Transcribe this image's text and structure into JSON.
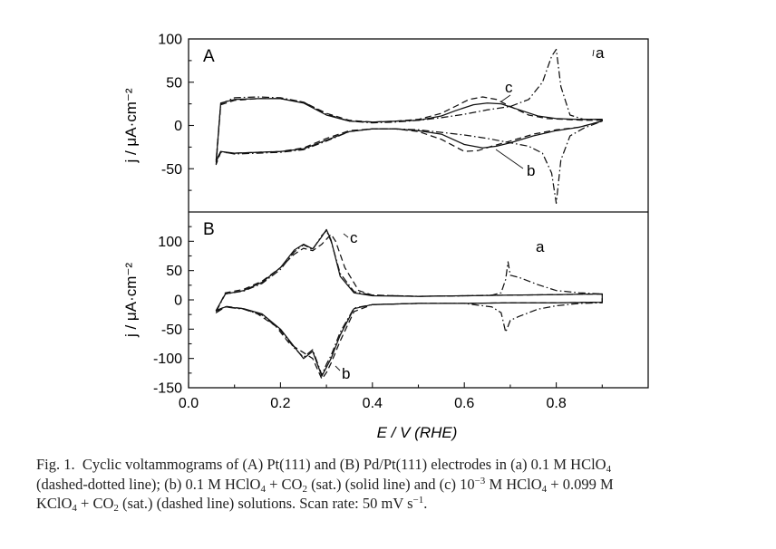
{
  "chart_data": [
    {
      "type": "line",
      "panel": "A",
      "xlabel": "E / V (RHE)",
      "ylabel": "j / μA·cm⁻²",
      "xlim": [
        0.0,
        1.0
      ],
      "ylim": [
        -100,
        100
      ],
      "yticks": [
        "100",
        "50",
        "0",
        "-50"
      ],
      "curve_labels": [
        "a",
        "c",
        "b"
      ],
      "series": [
        {
          "label": "a",
          "style": "dash-dot",
          "anodic": {
            "x": [
              0.06,
              0.07,
              0.1,
              0.15,
              0.2,
              0.25,
              0.3,
              0.35,
              0.4,
              0.45,
              0.5,
              0.55,
              0.6,
              0.65,
              0.7,
              0.74,
              0.77,
              0.79,
              0.8,
              0.81,
              0.83,
              0.86,
              0.9
            ],
            "y": [
              -40,
              25,
              32,
              33,
              32,
              27,
              13,
              5,
              3,
              4,
              6,
              9,
              13,
              18,
              22,
              30,
              50,
              80,
              88,
              45,
              12,
              7,
              7
            ]
          },
          "cathodic": {
            "x": [
              0.9,
              0.86,
              0.83,
              0.81,
              0.8,
              0.79,
              0.77,
              0.74,
              0.7,
              0.65,
              0.6,
              0.55,
              0.5,
              0.45,
              0.4,
              0.35,
              0.3,
              0.25,
              0.2,
              0.15,
              0.1,
              0.07,
              0.06
            ],
            "y": [
              5,
              -3,
              -12,
              -40,
              -90,
              -55,
              -32,
              -24,
              -20,
              -15,
              -11,
              -8,
              -5,
              -4,
              -4,
              -7,
              -18,
              -28,
              -31,
              -32,
              -33,
              -30,
              -40
            ]
          }
        },
        {
          "label": "b",
          "style": "solid",
          "anodic": {
            "x": [
              0.06,
              0.07,
              0.1,
              0.15,
              0.2,
              0.25,
              0.3,
              0.35,
              0.4,
              0.45,
              0.5,
              0.55,
              0.58,
              0.62,
              0.65,
              0.68,
              0.72,
              0.76,
              0.8,
              0.85,
              0.9
            ],
            "y": [
              -42,
              26,
              30,
              31,
              31,
              26,
              12,
              5,
              4,
              5,
              6,
              11,
              17,
              24,
              26,
              25,
              18,
              11,
              8,
              7,
              7
            ]
          },
          "cathodic": {
            "x": [
              0.9,
              0.85,
              0.8,
              0.75,
              0.7,
              0.67,
              0.64,
              0.6,
              0.55,
              0.5,
              0.45,
              0.4,
              0.35,
              0.3,
              0.25,
              0.2,
              0.15,
              0.1,
              0.07,
              0.06
            ],
            "y": [
              5,
              -2,
              -6,
              -12,
              -20,
              -24,
              -26,
              -22,
              -10,
              -6,
              -4,
              -4,
              -7,
              -17,
              -27,
              -30,
              -31,
              -32,
              -30,
              -42
            ]
          }
        },
        {
          "label": "c",
          "style": "dashed",
          "anodic": {
            "x": [
              0.06,
              0.07,
              0.1,
              0.15,
              0.2,
              0.25,
              0.3,
              0.35,
              0.4,
              0.45,
              0.5,
              0.55,
              0.58,
              0.61,
              0.64,
              0.67,
              0.7,
              0.74,
              0.78,
              0.82,
              0.86,
              0.9
            ],
            "y": [
              -45,
              24,
              29,
              31,
              31,
              27,
              14,
              6,
              4,
              5,
              7,
              14,
              22,
              30,
              33,
              30,
              22,
              12,
              8,
              7,
              6,
              6
            ]
          },
          "cathodic": {
            "x": [
              0.9,
              0.85,
              0.8,
              0.75,
              0.7,
              0.66,
              0.63,
              0.6,
              0.55,
              0.5,
              0.45,
              0.4,
              0.35,
              0.3,
              0.25,
              0.2,
              0.15,
              0.1,
              0.07,
              0.06
            ],
            "y": [
              5,
              -2,
              -5,
              -10,
              -18,
              -24,
              -29,
              -30,
              -16,
              -7,
              -4,
              -4,
              -6,
              -15,
              -26,
              -30,
              -31,
              -32,
              -31,
              -45
            ]
          }
        }
      ]
    },
    {
      "type": "line",
      "panel": "B",
      "xlabel": "E / V (RHE)",
      "ylabel": "j / μA·cm⁻²",
      "xlim": [
        0.0,
        1.0
      ],
      "ylim": [
        -150,
        150
      ],
      "xticks": [
        "0.0",
        "0.2",
        "0.4",
        "0.6",
        "0.8"
      ],
      "yticks": [
        "100",
        "50",
        "0",
        "-50",
        "-100",
        "-150"
      ],
      "curve_labels": [
        "c",
        "a",
        "b"
      ],
      "series": [
        {
          "label": "a",
          "style": "dash-dot",
          "anodic": {
            "x": [
              0.06,
              0.08,
              0.12,
              0.16,
              0.2,
              0.23,
              0.25,
              0.27,
              0.29,
              0.3,
              0.31,
              0.33,
              0.36,
              0.4,
              0.5,
              0.6,
              0.66,
              0.68,
              0.69,
              0.695,
              0.7,
              0.72,
              0.76,
              0.8,
              0.85,
              0.9
            ],
            "y": [
              -20,
              10,
              15,
              28,
              52,
              82,
              94,
              86,
              110,
              118,
              100,
              45,
              14,
              8,
              6,
              7,
              8,
              12,
              35,
              65,
              42,
              38,
              26,
              16,
              12,
              10
            ]
          },
          "cathodic": {
            "x": [
              0.9,
              0.85,
              0.8,
              0.76,
              0.72,
              0.7,
              0.695,
              0.69,
              0.68,
              0.66,
              0.6,
              0.5,
              0.4,
              0.36,
              0.33,
              0.31,
              0.3,
              0.29,
              0.27,
              0.25,
              0.23,
              0.2,
              0.16,
              0.12,
              0.08,
              0.06
            ],
            "y": [
              -5,
              -6,
              -10,
              -16,
              -28,
              -35,
              -45,
              -55,
              -22,
              -12,
              -6,
              -6,
              -8,
              -14,
              -55,
              -95,
              -110,
              -128,
              -85,
              -98,
              -82,
              -52,
              -26,
              -16,
              -12,
              -22
            ]
          }
        },
        {
          "label": "b",
          "style": "solid",
          "anodic": {
            "x": [
              0.06,
              0.08,
              0.12,
              0.16,
              0.2,
              0.23,
              0.25,
              0.27,
              0.29,
              0.3,
              0.31,
              0.33,
              0.36,
              0.4,
              0.5,
              0.6,
              0.7,
              0.8,
              0.9
            ],
            "y": [
              -18,
              10,
              16,
              30,
              55,
              85,
              95,
              87,
              108,
              120,
              102,
              40,
              12,
              7,
              6,
              7,
              8,
              9,
              10
            ]
          },
          "cathodic": {
            "x": [
              0.9,
              0.8,
              0.7,
              0.6,
              0.5,
              0.4,
              0.36,
              0.33,
              0.31,
              0.3,
              0.29,
              0.27,
              0.25,
              0.23,
              0.2,
              0.16,
              0.12,
              0.08,
              0.06
            ],
            "y": [
              -4,
              -5,
              -5,
              -6,
              -6,
              -8,
              -15,
              -60,
              -100,
              -115,
              -130,
              -88,
              -100,
              -80,
              -50,
              -24,
              -15,
              -12,
              -18
            ]
          }
        },
        {
          "label": "c",
          "style": "dashed",
          "anodic": {
            "x": [
              0.06,
              0.08,
              0.12,
              0.16,
              0.2,
              0.23,
              0.25,
              0.27,
              0.29,
              0.31,
              0.32,
              0.34,
              0.37,
              0.4,
              0.5,
              0.6,
              0.7,
              0.8,
              0.9
            ],
            "y": [
              -20,
              12,
              18,
              32,
              55,
              78,
              88,
              84,
              95,
              112,
              100,
              55,
              16,
              8,
              6,
              7,
              8,
              9,
              10
            ]
          },
          "cathodic": {
            "x": [
              0.9,
              0.8,
              0.7,
              0.6,
              0.5,
              0.4,
              0.36,
              0.33,
              0.31,
              0.3,
              0.29,
              0.27,
              0.25,
              0.22,
              0.19,
              0.15,
              0.12,
              0.08,
              0.06
            ],
            "y": [
              -4,
              -5,
              -5,
              -6,
              -6,
              -8,
              -20,
              -70,
              -108,
              -124,
              -135,
              -100,
              -90,
              -75,
              -45,
              -24,
              -15,
              -11,
              -20
            ]
          }
        }
      ]
    }
  ],
  "caption": {
    "label": "Fig. 1.",
    "line1": "Cyclic voltammograms of (A) Pt(111) and (B) Pd/Pt(111) electrodes in (a) 0.1 M HClO",
    "line2a": "(dashed-dotted line); (b) 0.1 M HClO",
    "line2b": " + CO",
    "line2c": " (sat.) (solid line) and (c) 10",
    "line2d": " M HClO",
    "line2e": " + 0.099 M",
    "line3a": "KClO",
    "line3b": " + CO",
    "line3c": " (sat.) (dashed line) solutions. Scan rate: 50 mV s",
    "sub_4": "4",
    "sub_2": "2",
    "sup_neg3": "−3",
    "sup_neg1": "−1",
    "end": "."
  }
}
